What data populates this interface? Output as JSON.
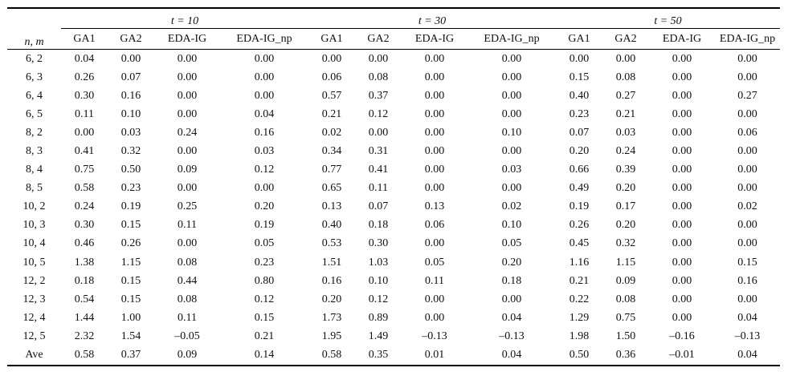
{
  "table": {
    "row_header": "n, m",
    "groups": [
      "t = 10",
      "t = 30",
      "t = 50"
    ],
    "columns": [
      "GA1",
      "GA2",
      "EDA-IG",
      "EDA-IG_np"
    ],
    "rows": [
      {
        "label": "6, 2",
        "values": [
          "0.04",
          "0.00",
          "0.00",
          "0.00",
          "0.00",
          "0.00",
          "0.00",
          "0.00",
          "0.00",
          "0.00",
          "0.00",
          "0.00"
        ]
      },
      {
        "label": "6, 3",
        "values": [
          "0.26",
          "0.07",
          "0.00",
          "0.00",
          "0.06",
          "0.08",
          "0.00",
          "0.00",
          "0.15",
          "0.08",
          "0.00",
          "0.00"
        ]
      },
      {
        "label": "6, 4",
        "values": [
          "0.30",
          "0.16",
          "0.00",
          "0.00",
          "0.57",
          "0.37",
          "0.00",
          "0.00",
          "0.40",
          "0.27",
          "0.00",
          "0.27"
        ]
      },
      {
        "label": "6, 5",
        "values": [
          "0.11",
          "0.10",
          "0.00",
          "0.04",
          "0.21",
          "0.12",
          "0.00",
          "0.00",
          "0.23",
          "0.21",
          "0.00",
          "0.00"
        ]
      },
      {
        "label": "8, 2",
        "values": [
          "0.00",
          "0.03",
          "0.24",
          "0.16",
          "0.02",
          "0.00",
          "0.00",
          "0.10",
          "0.07",
          "0.03",
          "0.00",
          "0.06"
        ]
      },
      {
        "label": "8, 3",
        "values": [
          "0.41",
          "0.32",
          "0.00",
          "0.03",
          "0.34",
          "0.31",
          "0.00",
          "0.00",
          "0.20",
          "0.24",
          "0.00",
          "0.00"
        ]
      },
      {
        "label": "8, 4",
        "values": [
          "0.75",
          "0.50",
          "0.09",
          "0.12",
          "0.77",
          "0.41",
          "0.00",
          "0.03",
          "0.66",
          "0.39",
          "0.00",
          "0.00"
        ]
      },
      {
        "label": "8, 5",
        "values": [
          "0.58",
          "0.23",
          "0.00",
          "0.00",
          "0.65",
          "0.11",
          "0.00",
          "0.00",
          "0.49",
          "0.20",
          "0.00",
          "0.00"
        ]
      },
      {
        "label": "10, 2",
        "values": [
          "0.24",
          "0.19",
          "0.25",
          "0.20",
          "0.13",
          "0.07",
          "0.13",
          "0.02",
          "0.19",
          "0.17",
          "0.00",
          "0.02"
        ]
      },
      {
        "label": "10, 3",
        "values": [
          "0.30",
          "0.15",
          "0.11",
          "0.19",
          "0.40",
          "0.18",
          "0.06",
          "0.10",
          "0.26",
          "0.20",
          "0.00",
          "0.00"
        ]
      },
      {
        "label": "10, 4",
        "values": [
          "0.46",
          "0.26",
          "0.00",
          "0.05",
          "0.53",
          "0.30",
          "0.00",
          "0.05",
          "0.45",
          "0.32",
          "0.00",
          "0.00"
        ]
      },
      {
        "label": "10, 5",
        "values": [
          "1.38",
          "1.15",
          "0.08",
          "0.23",
          "1.51",
          "1.03",
          "0.05",
          "0.20",
          "1.16",
          "1.15",
          "0.00",
          "0.15"
        ]
      },
      {
        "label": "12, 2",
        "values": [
          "0.18",
          "0.15",
          "0.44",
          "0.80",
          "0.16",
          "0.10",
          "0.11",
          "0.18",
          "0.21",
          "0.09",
          "0.00",
          "0.16"
        ]
      },
      {
        "label": "12, 3",
        "values": [
          "0.54",
          "0.15",
          "0.08",
          "0.12",
          "0.20",
          "0.12",
          "0.00",
          "0.00",
          "0.22",
          "0.08",
          "0.00",
          "0.00"
        ]
      },
      {
        "label": "12, 4",
        "values": [
          "1.44",
          "1.00",
          "0.11",
          "0.15",
          "1.73",
          "0.89",
          "0.00",
          "0.04",
          "1.29",
          "0.75",
          "0.00",
          "0.04"
        ]
      },
      {
        "label": "12, 5",
        "values": [
          "2.32",
          "1.54",
          "–0.05",
          "0.21",
          "1.95",
          "1.49",
          "–0.13",
          "–0.13",
          "1.98",
          "1.50",
          "–0.16",
          "–0.13"
        ]
      },
      {
        "label": "Ave",
        "values": [
          "0.58",
          "0.37",
          "0.09",
          "0.14",
          "0.58",
          "0.35",
          "0.01",
          "0.04",
          "0.50",
          "0.36",
          "–0.01",
          "0.04"
        ]
      }
    ]
  }
}
